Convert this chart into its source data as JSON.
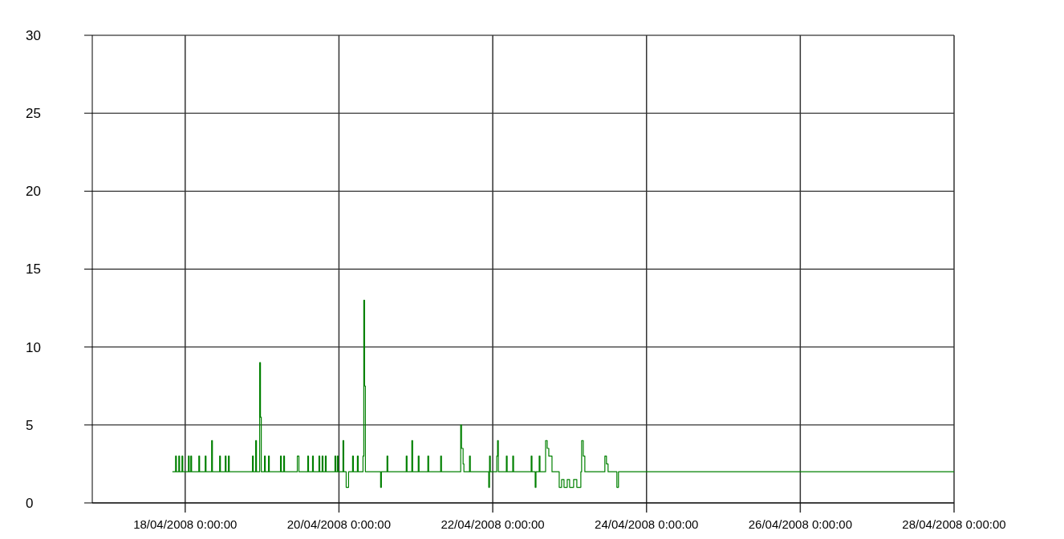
{
  "chart_data": {
    "type": "step",
    "x": [
      "2008-04-17T20:00",
      "2008-04-17T21:00",
      "2008-04-17T21:15",
      "2008-04-17T22:00",
      "2008-04-17T22:15",
      "2008-04-17T23:00",
      "2008-04-17T23:15",
      "2008-04-18T01:00",
      "2008-04-18T01:15",
      "2008-04-18T01:45",
      "2008-04-18T02:00",
      "2008-04-18T04:15",
      "2008-04-18T04:30",
      "2008-04-18T06:15",
      "2008-04-18T06:30",
      "2008-04-18T08:15",
      "2008-04-18T08:30",
      "2008-04-18T10:45",
      "2008-04-18T11:00",
      "2008-04-18T12:30",
      "2008-04-18T12:45",
      "2008-04-18T13:30",
      "2008-04-18T13:45",
      "2008-04-18T21:00",
      "2008-04-18T21:15",
      "2008-04-18T22:00",
      "2008-04-18T22:15",
      "2008-04-18T23:15",
      "2008-04-18T23:30",
      "2008-04-18T23:45",
      "2008-04-19T00:45",
      "2008-04-19T01:00",
      "2008-04-19T02:00",
      "2008-04-19T02:15",
      "2008-04-19T05:45",
      "2008-04-19T06:00",
      "2008-04-19T06:45",
      "2008-04-19T07:00",
      "2008-04-19T11:00",
      "2008-04-19T11:30",
      "2008-04-19T14:15",
      "2008-04-19T14:30",
      "2008-04-19T15:45",
      "2008-04-19T16:00",
      "2008-04-19T17:45",
      "2008-04-19T18:00",
      "2008-04-19T18:45",
      "2008-04-19T19:00",
      "2008-04-19T19:45",
      "2008-04-19T20:00",
      "2008-04-19T22:45",
      "2008-04-19T23:00",
      "2008-04-19T23:30",
      "2008-04-19T23:45",
      "2008-04-20T01:15",
      "2008-04-20T01:30",
      "2008-04-20T02:15",
      "2008-04-20T03:00",
      "2008-04-20T04:15",
      "2008-04-20T04:30",
      "2008-04-20T05:45",
      "2008-04-20T06:00",
      "2008-04-20T07:30",
      "2008-04-20T07:45",
      "2008-04-20T08:00",
      "2008-04-20T08:15",
      "2008-04-20T13:00",
      "2008-04-20T13:15",
      "2008-04-20T15:00",
      "2008-04-20T15:15",
      "2008-04-20T21:00",
      "2008-04-20T21:15",
      "2008-04-20T22:45",
      "2008-04-20T23:00",
      "2008-04-21T00:45",
      "2008-04-21T01:00",
      "2008-04-21T03:45",
      "2008-04-21T04:00",
      "2008-04-21T07:45",
      "2008-04-21T08:00",
      "2008-04-21T14:00",
      "2008-04-21T14:15",
      "2008-04-21T14:45",
      "2008-04-21T15:00",
      "2008-04-21T16:45",
      "2008-04-21T17:00",
      "2008-04-21T22:45",
      "2008-04-21T23:00",
      "2008-04-21T23:15",
      "2008-04-22T01:15",
      "2008-04-22T01:30",
      "2008-04-22T01:45",
      "2008-04-22T04:15",
      "2008-04-22T04:30",
      "2008-04-22T06:15",
      "2008-04-22T06:30",
      "2008-04-22T12:00",
      "2008-04-22T12:15",
      "2008-04-22T13:15",
      "2008-04-22T13:30",
      "2008-04-22T14:30",
      "2008-04-22T14:45",
      "2008-04-22T16:30",
      "2008-04-22T17:00",
      "2008-04-22T17:30",
      "2008-04-22T18:30",
      "2008-04-22T20:45",
      "2008-04-22T21:30",
      "2008-04-22T22:15",
      "2008-04-22T23:15",
      "2008-04-23T00:00",
      "2008-04-23T01:15",
      "2008-04-23T02:15",
      "2008-04-23T03:30",
      "2008-04-23T03:45",
      "2008-04-23T04:15",
      "2008-04-23T04:45",
      "2008-04-23T11:00",
      "2008-04-23T11:30",
      "2008-04-23T12:00",
      "2008-04-23T14:45",
      "2008-04-23T15:15",
      "2008-04-28T00:00"
    ],
    "series": [
      {
        "color": "#008000",
        "values": [
          2,
          3,
          2,
          3,
          2,
          3,
          2,
          3,
          2,
          3,
          2,
          3,
          2,
          3,
          2,
          4,
          2,
          3,
          2,
          3,
          2,
          3,
          2,
          3,
          2,
          4,
          2,
          9,
          5.5,
          2,
          3,
          2,
          3,
          2,
          3,
          2,
          3,
          2,
          3,
          2,
          3,
          2,
          3,
          2,
          3,
          2,
          3,
          2,
          3,
          2,
          3,
          2,
          3,
          2,
          4,
          2,
          1,
          2,
          3,
          2,
          3,
          2,
          3,
          13,
          7.5,
          2,
          1,
          2,
          3,
          2,
          3,
          2,
          4,
          2,
          3,
          2,
          3,
          2,
          3,
          2,
          5,
          3.5,
          2.5,
          2,
          3,
          2,
          1,
          3,
          2,
          3,
          4,
          2,
          3,
          2,
          3,
          2,
          3,
          2,
          1,
          2,
          3,
          2,
          4,
          3.5,
          3,
          2,
          1,
          1.5,
          1,
          1.5,
          1,
          1.5,
          1,
          2,
          4,
          3,
          2,
          3,
          2.5,
          2,
          1,
          2,
          2
        ]
      }
    ],
    "xlim": [
      "2008-04-16T19:00",
      "2008-04-28T00:00"
    ],
    "xticks": [
      {
        "value": "2008-04-18",
        "label": "18/04/2008 0:00:00"
      },
      {
        "value": "2008-04-20",
        "label": "20/04/2008 0:00:00"
      },
      {
        "value": "2008-04-22",
        "label": "22/04/2008 0:00:00"
      },
      {
        "value": "2008-04-24",
        "label": "24/04/2008 0:00:00"
      },
      {
        "value": "2008-04-26",
        "label": "26/04/2008 0:00:00"
      },
      {
        "value": "2008-04-28",
        "label": "28/04/2008 0:00:00"
      }
    ],
    "ylim": [
      0,
      30
    ],
    "yticks": [
      0,
      5,
      10,
      15,
      20,
      25,
      30
    ],
    "grid": true,
    "marker": "none",
    "line_style": "solid"
  }
}
